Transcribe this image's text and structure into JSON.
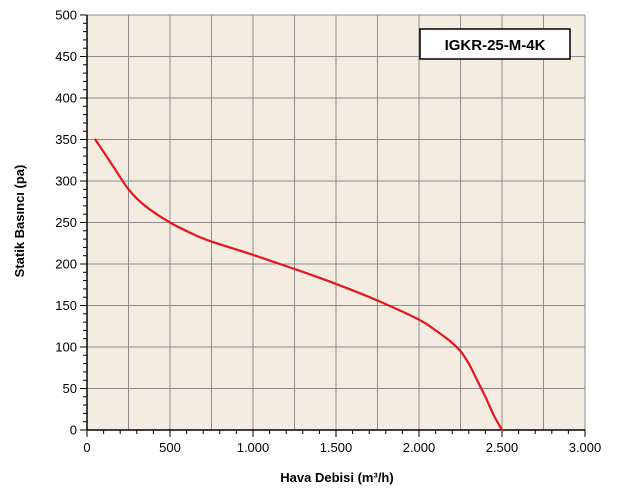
{
  "chart_data": {
    "type": "line",
    "title": "",
    "xlabel": "Hava Debisi (m³/h)",
    "ylabel": "Statik Basıncı (pa)",
    "xlim": [
      0,
      3000
    ],
    "ylim": [
      0,
      500
    ],
    "x_ticks": [
      0,
      500,
      1000,
      1500,
      2000,
      2500,
      3000
    ],
    "x_tick_labels": [
      "0",
      "500",
      "1.000",
      "1.500",
      "2.000",
      "2.500",
      "3.000"
    ],
    "y_ticks": [
      0,
      50,
      100,
      150,
      200,
      250,
      300,
      350,
      400,
      450,
      500
    ],
    "y_tick_labels": [
      "0",
      "50",
      "100",
      "150",
      "200",
      "250",
      "300",
      "350",
      "400",
      "450",
      "500"
    ],
    "grid": true,
    "annotation": "IGKR-25-M-4K",
    "colors": {
      "background": "#f4ece1",
      "grid": "#8c8c8c",
      "curve": "#e3161b",
      "axis": "#000000"
    },
    "series": [
      {
        "color": "#e3161b",
        "x": [
          50,
          150,
          250,
          350,
          500,
          650,
          750,
          1000,
          1250,
          1500,
          1750,
          2000,
          2100,
          2200,
          2250,
          2300,
          2350,
          2400,
          2450,
          2500
        ],
        "y": [
          350,
          320,
          290,
          270,
          250,
          235,
          227,
          211,
          194,
          176,
          156,
          133,
          120,
          105,
          95,
          80,
          60,
          40,
          18,
          0
        ]
      }
    ]
  }
}
